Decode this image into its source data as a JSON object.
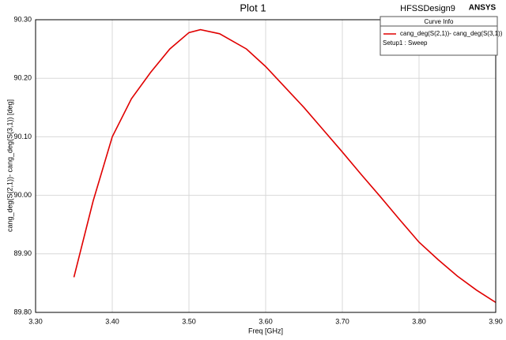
{
  "chart_data": {
    "type": "line",
    "title": "Plot 1",
    "design_name": "HFSSDesign9",
    "brand": "ANSYS",
    "x_label": "Freq [GHz]",
    "y_label": "cang_deg(S(2,1))- cang_deg(S(3,1)) [deg]",
    "legend_title": "Curve Info",
    "legend_note": "Setup1 : Sweep",
    "x": [
      3.35,
      3.375,
      3.4,
      3.425,
      3.45,
      3.475,
      3.5,
      3.515,
      3.54,
      3.575,
      3.6,
      3.625,
      3.65,
      3.675,
      3.7,
      3.725,
      3.75,
      3.775,
      3.8,
      3.825,
      3.85,
      3.875,
      3.9
    ],
    "series": [
      {
        "name": "cang_deg(S(2,1))- cang_deg(S(3,1))",
        "color": "#e00000",
        "values": [
          89.86,
          89.99,
          90.1,
          90.165,
          90.21,
          90.25,
          90.278,
          90.283,
          90.276,
          90.25,
          90.22,
          90.185,
          90.15,
          90.112,
          90.074,
          90.035,
          89.997,
          89.958,
          89.92,
          89.89,
          89.862,
          89.838,
          89.817
        ]
      }
    ],
    "xlim": [
      3.3,
      3.9
    ],
    "xticks": [
      {
        "value": 3.3,
        "label": "3.30"
      },
      {
        "value": 3.4,
        "label": "3.40"
      },
      {
        "value": 3.5,
        "label": "3.50"
      },
      {
        "value": 3.6,
        "label": "3.60"
      },
      {
        "value": 3.7,
        "label": "3.70"
      },
      {
        "value": 3.8,
        "label": "3.80"
      },
      {
        "value": 3.9,
        "label": "3.90"
      }
    ],
    "ylim": [
      89.8,
      90.3
    ],
    "yticks": [
      {
        "value": 89.8,
        "label": "89.80"
      },
      {
        "value": 89.9,
        "label": "89.90"
      },
      {
        "value": 90.0,
        "label": "90.00"
      },
      {
        "value": 90.1,
        "label": "90.10"
      },
      {
        "value": 90.2,
        "label": "90.20"
      },
      {
        "value": 90.3,
        "label": "90.30"
      }
    ],
    "grid": true
  }
}
